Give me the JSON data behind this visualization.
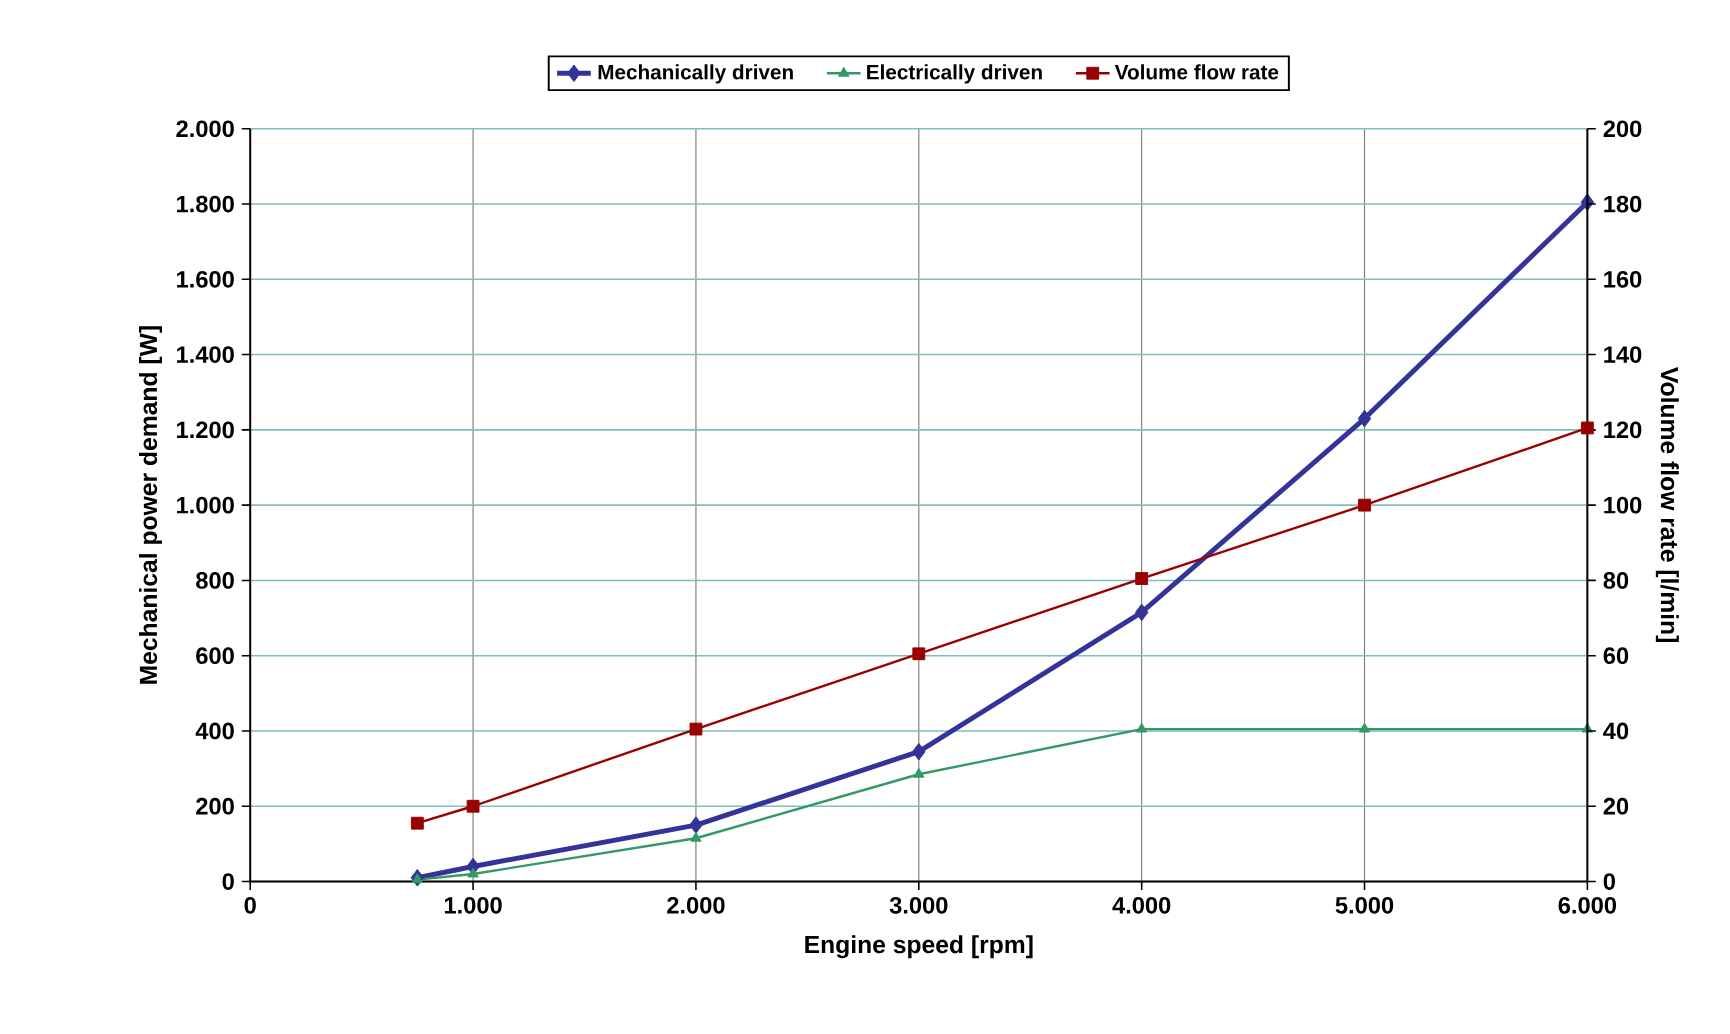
{
  "chart_data": {
    "type": "line",
    "xlabel": "Engine speed [rpm]",
    "ylabel": "Mechanical power demand [W]",
    "y2label": "Volume flow rate [l/min]",
    "xlim": [
      0,
      6000
    ],
    "xticks": [
      0,
      {
        "value": 1000,
        "label": "1.000"
      },
      {
        "value": 2000,
        "label": "2.000"
      },
      {
        "value": 3000,
        "label": "3.000"
      },
      {
        "value": 4000,
        "label": "4.000"
      },
      {
        "value": 5000,
        "label": "5.000"
      },
      {
        "value": 6000,
        "label": "6.000"
      }
    ],
    "ylim": [
      0,
      2000
    ],
    "yticks": [
      0,
      200,
      400,
      600,
      800,
      {
        "value": 1000,
        "label": "1.000"
      },
      {
        "value": 1200,
        "label": "1.200"
      },
      {
        "value": 1400,
        "label": "1.400"
      },
      {
        "value": 1600,
        "label": "1.600"
      },
      {
        "value": 1800,
        "label": "1.800"
      },
      {
        "value": 2000,
        "label": "2.000"
      }
    ],
    "y2lim": [
      0,
      200
    ],
    "y2ticks": [
      0,
      20,
      40,
      60,
      80,
      100,
      120,
      140,
      160,
      180,
      200
    ],
    "x": [
      750,
      1000,
      2000,
      3000,
      4000,
      5000,
      6000
    ],
    "series": [
      {
        "name": "Mechanically driven",
        "color": "#333399",
        "marker": "diamond",
        "values": [
          10,
          40,
          150,
          345,
          715,
          1230,
          1805
        ]
      },
      {
        "name": "Electrically driven",
        "color": "#339966",
        "marker": "triangle",
        "values": [
          5,
          20,
          115,
          285,
          405,
          405,
          405
        ]
      },
      {
        "name": "Volume flow rate",
        "color": "#990000",
        "marker": "square",
        "axis": "y2",
        "values": [
          15.5,
          20,
          40.5,
          60.5,
          80.5,
          100,
          120.5
        ]
      }
    ],
    "grid": true,
    "legend": "top"
  }
}
